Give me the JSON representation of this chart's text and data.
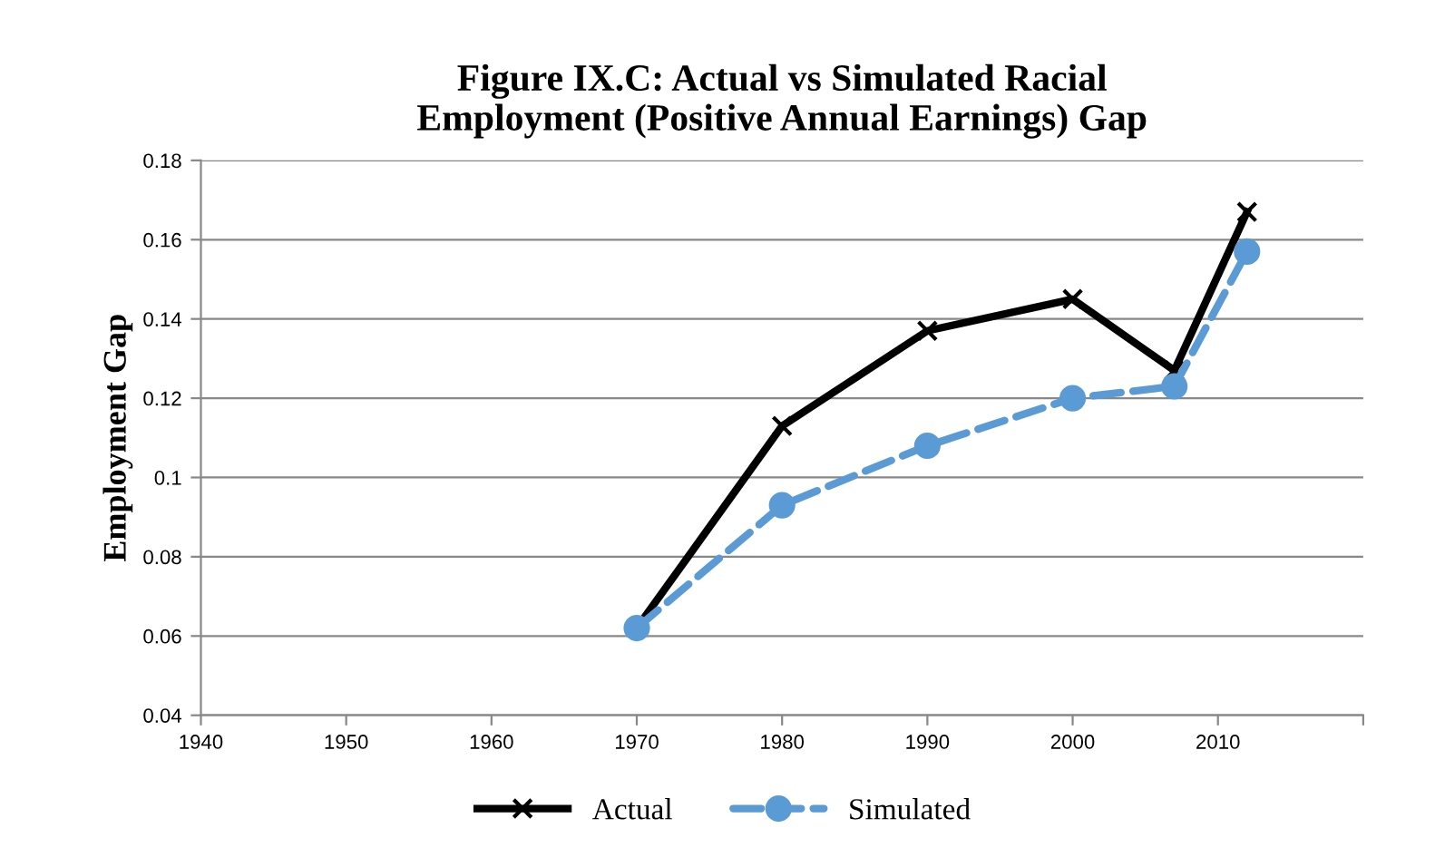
{
  "chart_data": {
    "type": "line",
    "title": "Figure IX.C: Actual vs Simulated Racial\nEmployment (Positive Annual Earnings) Gap",
    "ylabel": "Employment Gap",
    "x": [
      1970,
      1980,
      1990,
      2000,
      2007,
      2012
    ],
    "series": [
      {
        "name": "Actual",
        "color": "#000000",
        "marker": "cross",
        "line_style": "solid",
        "values": [
          0.062,
          0.113,
          0.137,
          0.145,
          0.127,
          0.167
        ]
      },
      {
        "name": "Simulated",
        "color": "#5b9bd5",
        "marker": "circle",
        "line_style": "dashed",
        "values": [
          0.062,
          0.093,
          0.108,
          0.12,
          0.123,
          0.157
        ]
      }
    ],
    "xlim": [
      1940,
      2020
    ],
    "xticks": [
      1940,
      1950,
      1960,
      1970,
      1980,
      1990,
      2000,
      2010,
      {
        "value": 2020,
        "label": null
      }
    ],
    "ylim": [
      0.04,
      0.18
    ],
    "yticks": [
      0.04,
      0.06,
      0.08,
      {
        "value": 0.1,
        "label": "0.1"
      },
      0.12,
      0.14,
      0.16,
      0.18
    ],
    "grid": "y",
    "legend": "bottom"
  }
}
